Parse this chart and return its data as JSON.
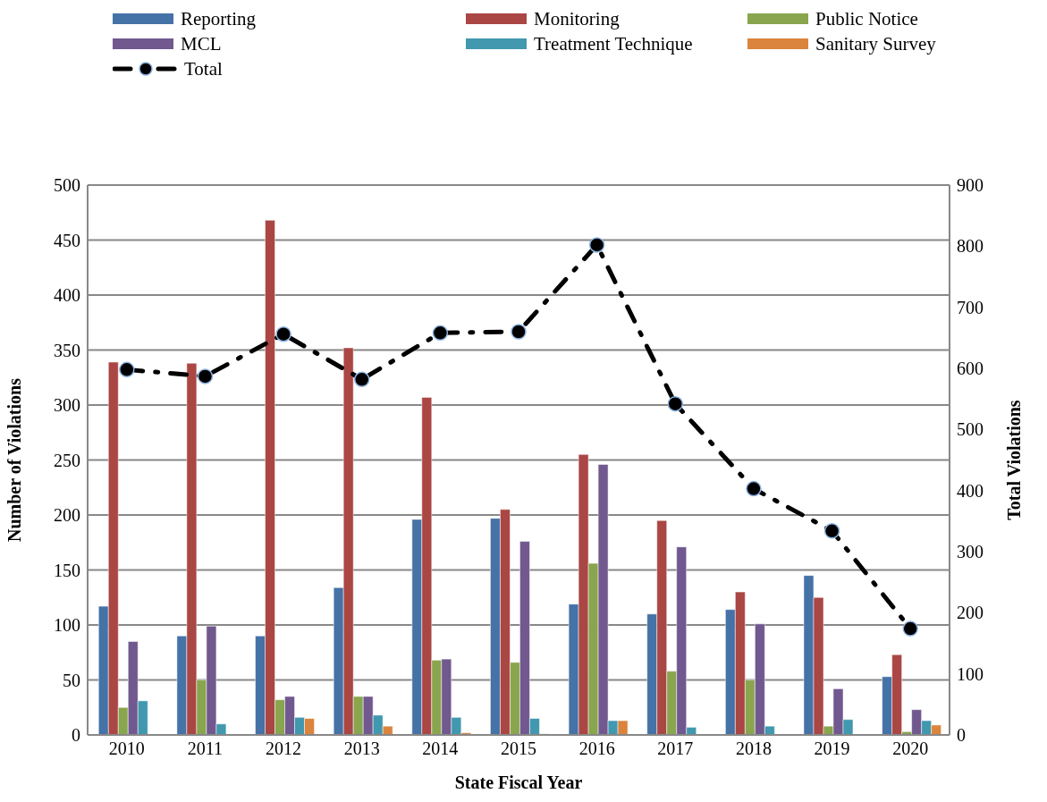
{
  "chart_data": {
    "type": "bar",
    "xlabel": "State Fiscal Year",
    "ylabel": "Number of Violations",
    "y2label": "Total Violations",
    "categories": [
      "2010",
      "2011",
      "2012",
      "2013",
      "2014",
      "2015",
      "2016",
      "2017",
      "2018",
      "2019",
      "2020"
    ],
    "series": [
      {
        "name": "Reporting",
        "color": "#4572a7",
        "values": [
          117,
          90,
          90,
          134,
          196,
          197,
          119,
          110,
          114,
          145,
          53
        ]
      },
      {
        "name": "Monitoring",
        "color": "#aa4643",
        "values": [
          339,
          338,
          468,
          352,
          307,
          205,
          255,
          195,
          130,
          125,
          73
        ]
      },
      {
        "name": "Public Notice",
        "color": "#89a54e",
        "values": [
          25,
          50,
          32,
          35,
          68,
          66,
          156,
          58,
          50,
          8,
          3
        ]
      },
      {
        "name": "MCL",
        "color": "#71588f",
        "values": [
          85,
          99,
          35,
          35,
          69,
          176,
          246,
          171,
          101,
          42,
          23
        ]
      },
      {
        "name": "Treatment Technique",
        "color": "#4198af",
        "values": [
          31,
          10,
          16,
          18,
          16,
          15,
          13,
          7,
          8,
          14,
          13
        ]
      },
      {
        "name": "Sanitary Survey",
        "color": "#db843d",
        "values": [
          0,
          0,
          15,
          8,
          2,
          1,
          13,
          0,
          0,
          0,
          9
        ]
      },
      {
        "name": "Total",
        "type": "line",
        "axis": "y2",
        "color": "#000000",
        "marker": "circle",
        "line_style": "dashed",
        "values": [
          598,
          587,
          656,
          582,
          658,
          660,
          802,
          542,
          403,
          334,
          174
        ]
      }
    ],
    "ylim": [
      0,
      500
    ],
    "yticks": [
      0,
      50,
      100,
      150,
      200,
      250,
      300,
      350,
      400,
      450,
      500
    ],
    "y2lim": [
      0,
      900
    ],
    "y2ticks": [
      0,
      100,
      200,
      300,
      400,
      500,
      600,
      700,
      800,
      900
    ],
    "grid": "y",
    "legend": "top"
  }
}
